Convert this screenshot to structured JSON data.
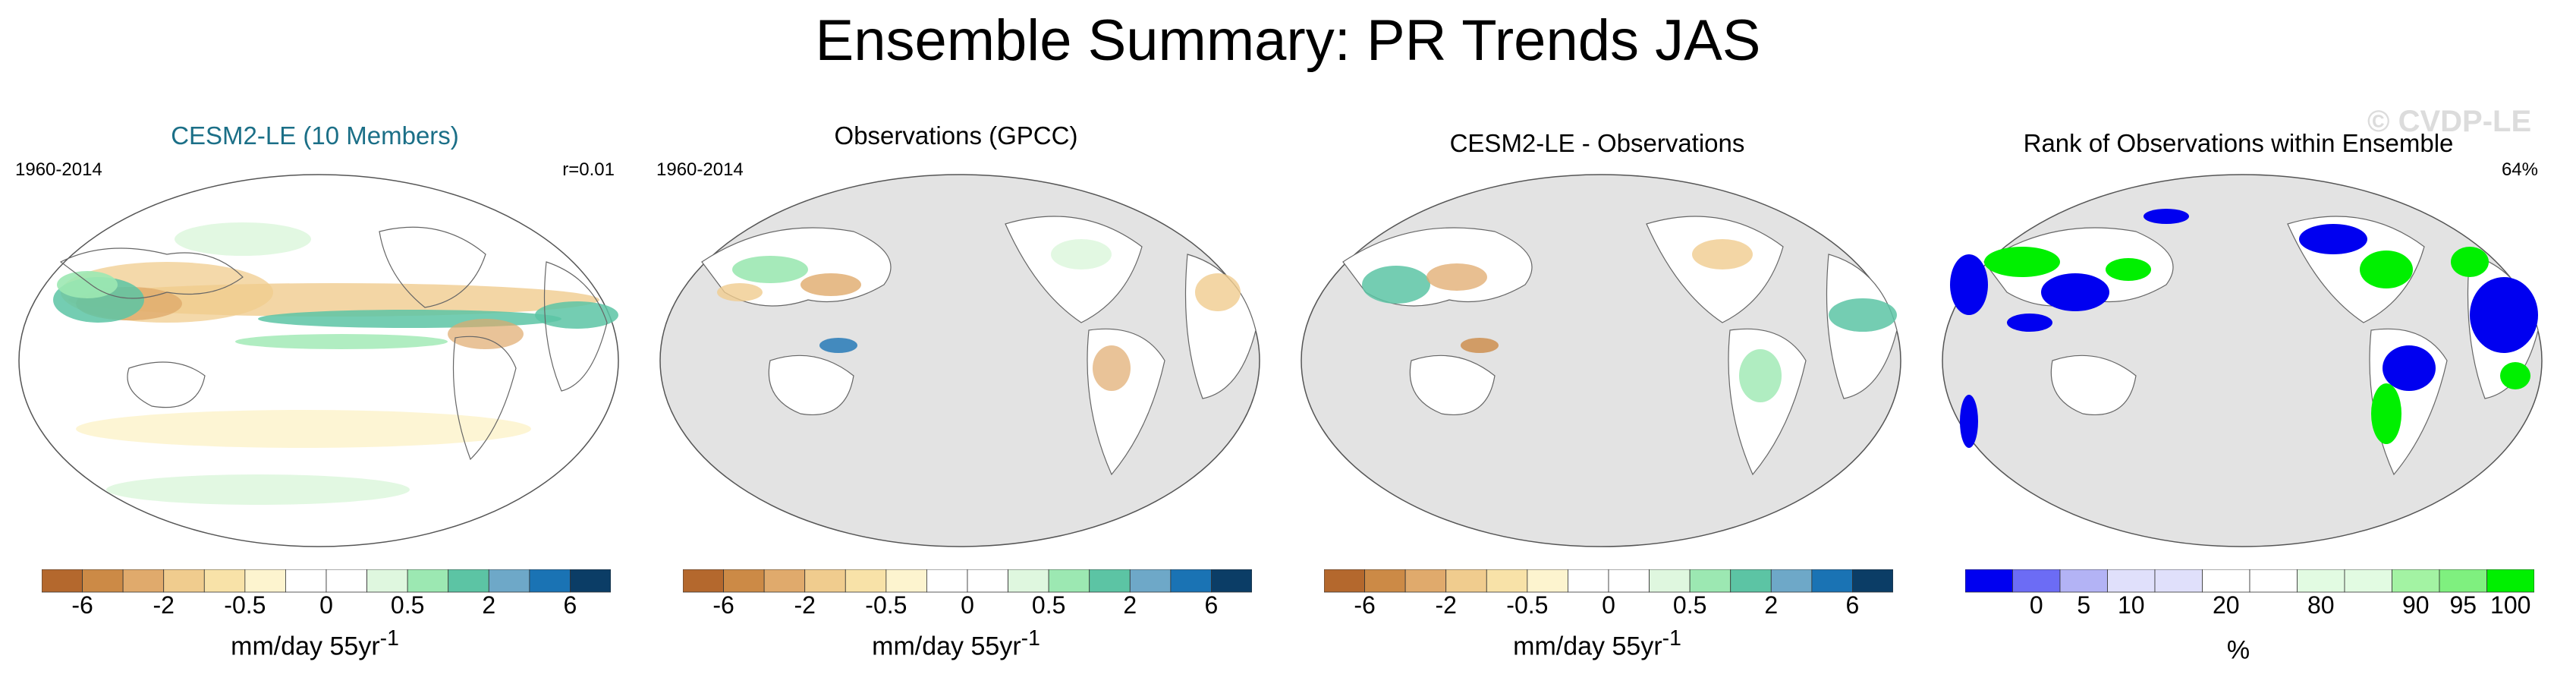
{
  "title": "Ensemble Summary: PR Trends JAS",
  "watermark": "© CVDP-LE",
  "colors": {
    "ocean_gray": "#e3e3e3",
    "brown_scale": [
      "#b4682d",
      "#cc8a46",
      "#e0aa6c",
      "#f0cc8e",
      "#f8e2a8",
      "#fdf4cf"
    ],
    "green_blue_scale": [
      "#dff7df",
      "#9ce8b2",
      "#5cc4a4",
      "#6ea8c8",
      "#1a73b4",
      "#0b3d66"
    ],
    "rank_scale": [
      "#0000f0",
      "#6c6cf5",
      "#b3b3f5",
      "#e0e0fb",
      "#ffffff",
      "#e2fbe2",
      "#a3f3a3",
      "#7ff07f",
      "#00f000"
    ]
  },
  "panels": [
    {
      "id": "model",
      "title": "CESM2-LE (10 Members)",
      "period": "1960-2014",
      "stat": "r=0.01",
      "units_prefix": "mm/day 55yr",
      "units_sup": "-1"
    },
    {
      "id": "obs",
      "title": "Observations (GPCC)",
      "period": "1960-2014",
      "stat": "",
      "units_prefix": "mm/day 55yr",
      "units_sup": "-1"
    },
    {
      "id": "diff",
      "title": "CESM2-LE - Observations",
      "period": "",
      "stat": "",
      "units_prefix": "mm/day 55yr",
      "units_sup": "-1"
    },
    {
      "id": "rank",
      "title": "Rank of Observations within Ensemble",
      "period": "",
      "stat": "64%",
      "units_prefix": "%",
      "units_sup": ""
    }
  ],
  "chart_data": [
    {
      "type": "heatmap",
      "title": "CESM2-LE (10 Members)",
      "field": "precipitation trend",
      "period": "1960-2014",
      "season": "JAS",
      "pattern_correlation": 0.01,
      "colorbar": {
        "tick_labels": [
          "-6",
          "-2",
          "-0.5",
          "0",
          "0.5",
          "2",
          "6"
        ],
        "boundaries": [
          -8,
          -6,
          -4,
          -2,
          -1,
          -0.5,
          -0.2,
          0.2,
          0.5,
          1,
          2,
          4,
          6,
          8
        ],
        "units": "mm/day 55yr-1"
      }
    },
    {
      "type": "heatmap",
      "title": "Observations (GPCC)",
      "field": "precipitation trend",
      "period": "1960-2014",
      "season": "JAS",
      "colorbar": {
        "tick_labels": [
          "-6",
          "-2",
          "-0.5",
          "0",
          "0.5",
          "2",
          "6"
        ],
        "units": "mm/day 55yr-1"
      }
    },
    {
      "type": "heatmap",
      "title": "CESM2-LE - Observations",
      "field": "precipitation trend difference",
      "colorbar": {
        "tick_labels": [
          "-6",
          "-2",
          "-0.5",
          "0",
          "0.5",
          "2",
          "6"
        ],
        "units": "mm/day 55yr-1"
      }
    },
    {
      "type": "heatmap",
      "title": "Rank of Observations within Ensemble",
      "summary_percent": 64,
      "colorbar": {
        "tick_labels": [
          "0",
          "5",
          "10",
          "20",
          "80",
          "90",
          "95",
          "100"
        ],
        "units": "%"
      }
    }
  ]
}
